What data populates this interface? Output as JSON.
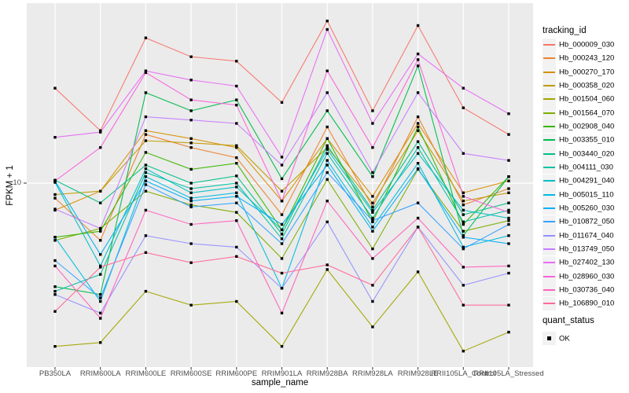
{
  "chart_data": {
    "type": "line",
    "title": "",
    "xlabel": "sample_name",
    "ylabel": "FPKM + 1",
    "y_scale": "log10",
    "y_ticks": [
      "10"
    ],
    "y_range_approx": [
      0.9,
      110
    ],
    "grid": "major",
    "legend_position": "right",
    "marker": "black-square",
    "categories": [
      "PB350LA",
      "RRIM600LA",
      "RRIM600LE",
      "RRIM600SE",
      "RRIM600PE",
      "RRIM901LA",
      "RRIM928BA",
      "RRIM928LA",
      "RRIM928LE",
      "RRII105LA_Control",
      "RRII105LA_Stressed"
    ],
    "series": [
      {
        "name": "Hb_000009_030",
        "color": "#F8766D",
        "values": [
          35,
          20,
          68,
          53,
          50,
          29,
          85,
          26,
          80,
          27,
          19
        ]
      },
      {
        "name": "Hb_000243_120",
        "color": "#EA8331",
        "values": [
          8.2,
          4.7,
          19,
          16,
          14,
          6.6,
          21,
          7.3,
          24,
          7.5,
          9.3
        ]
      },
      {
        "name": "Hb_000270_170",
        "color": "#D89000",
        "values": [
          7.0,
          9.0,
          20,
          18,
          16,
          7.9,
          18,
          8.4,
          22,
          8.8,
          10.3
        ]
      },
      {
        "name": "Hb_000358_020",
        "color": "#C09B00",
        "values": [
          8.6,
          9.0,
          17.5,
          17,
          16.4,
          9.0,
          16,
          7.7,
          20,
          7.9,
          8.8
        ]
      },
      {
        "name": "Hb_001504_060",
        "color": "#A3A500",
        "values": [
          1.16,
          1.22,
          2.4,
          2.0,
          2.1,
          1.16,
          3.2,
          1.5,
          3.1,
          1.09,
          1.4
        ]
      },
      {
        "name": "Hb_001564_070",
        "color": "#7CAE00",
        "values": [
          4.7,
          5.5,
          9.0,
          7.5,
          6.8,
          3.7,
          10.5,
          4.2,
          12,
          5.3,
          6.1
        ]
      },
      {
        "name": "Hb_002908_040",
        "color": "#39B600",
        "values": [
          4.9,
          5.3,
          15,
          12,
          13,
          5.4,
          18,
          6.0,
          21,
          5.8,
          10.9
        ]
      },
      {
        "name": "Hb_003355_010",
        "color": "#00BB4E",
        "values": [
          2.55,
          2.3,
          33,
          26,
          30,
          10.6,
          26,
          10.9,
          47,
          5.0,
          10.9
        ]
      },
      {
        "name": "Hb_003440_020",
        "color": "#00C087",
        "values": [
          10.4,
          7.7,
          12.7,
          10,
          11,
          5.1,
          16.4,
          7.0,
          17.3,
          6.6,
          7.7
        ]
      },
      {
        "name": "Hb_004111_030",
        "color": "#00C1A3",
        "values": [
          2.4,
          3.0,
          11.5,
          9.3,
          10,
          4.8,
          14.8,
          6.3,
          16,
          6.0,
          7.0
        ]
      },
      {
        "name": "Hb_004291_040",
        "color": "#00BFC4",
        "values": [
          10.1,
          3.35,
          12.1,
          8.8,
          9.5,
          5.4,
          15.6,
          6.8,
          14.8,
          7.0,
          6.3
        ]
      },
      {
        "name": "Hb_005015_110",
        "color": "#00BAE0",
        "values": [
          4.9,
          2.1,
          10.9,
          8.2,
          8.8,
          2.5,
          13.5,
          5.6,
          13,
          4.3,
          5.0
        ]
      },
      {
        "name": "Hb_005260_030",
        "color": "#00B0F6",
        "values": [
          10.3,
          3.9,
          10.3,
          7.9,
          8.4,
          5.8,
          12.7,
          5.3,
          12.1,
          4.9,
          4.5
        ]
      },
      {
        "name": "Hb_010872_050",
        "color": "#35A2FF",
        "values": [
          3.6,
          2.2,
          9.8,
          7.3,
          7.7,
          4.5,
          11.5,
          6.1,
          7.7,
          4.2,
          5.8
        ]
      },
      {
        "name": "Hb_011674_040",
        "color": "#9590FF",
        "values": [
          2.3,
          1.8,
          5.0,
          4.5,
          4.3,
          2.5,
          6.0,
          2.1,
          5.6,
          2.6,
          3.05
        ]
      },
      {
        "name": "Hb_013749_050",
        "color": "#C77CFF",
        "values": [
          7.1,
          5.5,
          24,
          23,
          22,
          12.7,
          33,
          11.5,
          33,
          14.8,
          13.5
        ]
      },
      {
        "name": "Hb_027402_130",
        "color": "#E76BF3",
        "values": [
          18.3,
          19.6,
          44,
          39,
          36,
          14.1,
          76,
          22,
          55,
          35,
          25
        ]
      },
      {
        "name": "Hb_028960_030",
        "color": "#FA62DB",
        "values": [
          10.3,
          16,
          43,
          30,
          28,
          7.9,
          44,
          16,
          51,
          8.4,
          6.8
        ]
      },
      {
        "name": "Hb_030736_040",
        "color": "#FF62BC",
        "values": [
          3.35,
          1.68,
          7.0,
          5.8,
          6.1,
          1.8,
          7.9,
          3.7,
          6.3,
          3.3,
          3.35
        ]
      },
      {
        "name": "Hb_106890_010",
        "color": "#FF6A98",
        "values": [
          1.84,
          3.3,
          4.0,
          3.5,
          3.8,
          3.05,
          3.4,
          2.6,
          5.6,
          2.0,
          2.0
        ]
      }
    ]
  },
  "legend": {
    "tracking_title": "tracking_id",
    "quant_title": "quant_status",
    "quant_items": [
      {
        "label": "OK",
        "marker": "black-square"
      }
    ]
  },
  "panel": {
    "background": "#EBEBEB",
    "gridline_color": "#FFFFFF",
    "tick_color": "#333333",
    "tick_text_color": "#4D4D4D"
  }
}
